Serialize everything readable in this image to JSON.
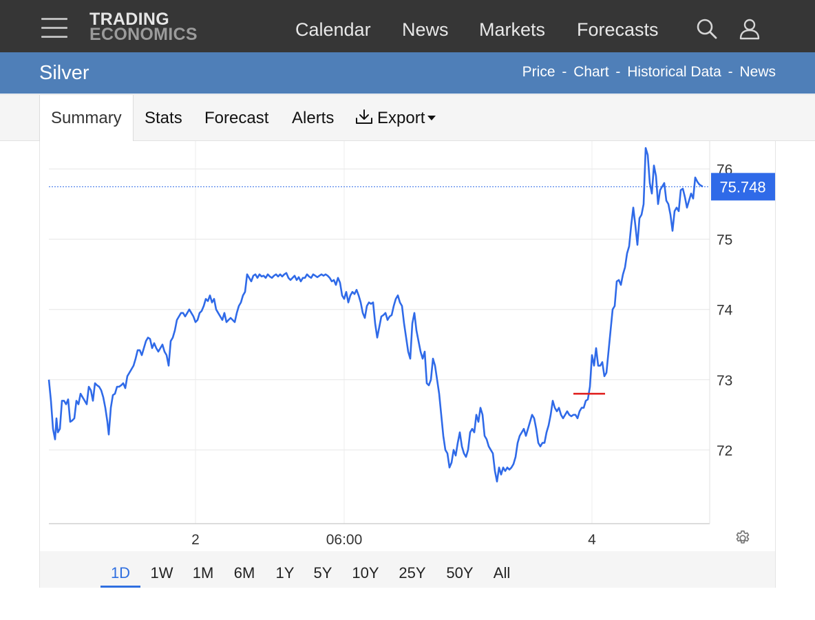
{
  "nav": {
    "logo_line1": "TRADING",
    "logo_line2": "ECONOMICS",
    "links": [
      "Calendar",
      "News",
      "Markets",
      "Forecasts"
    ]
  },
  "titlebar": {
    "title": "Silver",
    "links": [
      "Price",
      "Chart",
      "Historical Data",
      "News"
    ],
    "separator": "-"
  },
  "tabs": {
    "active": "Summary",
    "items": [
      "Summary",
      "Stats",
      "Forecast",
      "Alerts",
      "Export"
    ]
  },
  "chart_data": {
    "type": "line",
    "series_color": "#2f6ae8",
    "current_value": "75.748",
    "current_value_num": 75.748,
    "reference_level": 72.8,
    "reference_color": "#e0201f",
    "ylim": [
      70.95,
      76.3
    ],
    "y_ticks": [
      72,
      73,
      74,
      75,
      76
    ],
    "y_tick_labels": [
      "72",
      "73",
      "74",
      "75",
      "76"
    ],
    "x_ticks": [
      213,
      429,
      789
    ],
    "x_tick_labels": [
      "2",
      "06:00",
      "4"
    ],
    "x_range": [
      0,
      960
    ],
    "grid": true,
    "legend": "none",
    "points": [
      [
        0,
        73.0
      ],
      [
        3,
        72.7
      ],
      [
        6,
        72.3
      ],
      [
        9,
        72.15
      ],
      [
        11,
        72.45
      ],
      [
        13,
        72.25
      ],
      [
        16,
        72.3
      ],
      [
        19,
        72.7
      ],
      [
        22,
        72.7
      ],
      [
        25,
        72.65
      ],
      [
        28,
        72.72
      ],
      [
        31,
        72.4
      ],
      [
        34,
        72.42
      ],
      [
        37,
        72.45
      ],
      [
        40,
        72.7
      ],
      [
        43,
        72.65
      ],
      [
        46,
        72.8
      ],
      [
        49,
        72.75
      ],
      [
        52,
        72.7
      ],
      [
        55,
        72.65
      ],
      [
        58,
        72.9
      ],
      [
        61,
        72.85
      ],
      [
        64,
        72.7
      ],
      [
        67,
        72.95
      ],
      [
        70,
        72.92
      ],
      [
        73,
        72.9
      ],
      [
        76,
        72.85
      ],
      [
        79,
        72.75
      ],
      [
        82,
        72.6
      ],
      [
        85,
        72.4
      ],
      [
        87,
        72.22
      ],
      [
        90,
        72.6
      ],
      [
        93,
        72.78
      ],
      [
        96,
        72.8
      ],
      [
        99,
        72.9
      ],
      [
        102,
        72.9
      ],
      [
        105,
        72.92
      ],
      [
        108,
        72.95
      ],
      [
        111,
        72.88
      ],
      [
        114,
        73.05
      ],
      [
        117,
        73.1
      ],
      [
        120,
        73.15
      ],
      [
        123,
        73.2
      ],
      [
        126,
        73.3
      ],
      [
        129,
        73.42
      ],
      [
        132,
        73.42
      ],
      [
        135,
        73.35
      ],
      [
        138,
        73.45
      ],
      [
        141,
        73.55
      ],
      [
        144,
        73.6
      ],
      [
        147,
        73.58
      ],
      [
        150,
        73.45
      ],
      [
        153,
        73.52
      ],
      [
        156,
        73.45
      ],
      [
        159,
        73.4
      ],
      [
        162,
        73.45
      ],
      [
        165,
        73.5
      ],
      [
        168,
        73.4
      ],
      [
        171,
        73.35
      ],
      [
        174,
        73.2
      ],
      [
        177,
        73.55
      ],
      [
        180,
        73.6
      ],
      [
        183,
        73.7
      ],
      [
        186,
        73.85
      ],
      [
        189,
        73.9
      ],
      [
        192,
        73.95
      ],
      [
        195,
        73.95
      ],
      [
        198,
        73.9
      ],
      [
        201,
        73.95
      ],
      [
        204,
        74.0
      ],
      [
        207,
        73.95
      ],
      [
        210,
        73.9
      ],
      [
        213,
        73.82
      ],
      [
        216,
        73.85
      ],
      [
        219,
        73.95
      ],
      [
        222,
        73.98
      ],
      [
        225,
        74.05
      ],
      [
        228,
        74.15
      ],
      [
        231,
        74.12
      ],
      [
        234,
        74.2
      ],
      [
        237,
        74.1
      ],
      [
        240,
        74.15
      ],
      [
        243,
        74.0
      ],
      [
        246,
        73.95
      ],
      [
        249,
        73.9
      ],
      [
        252,
        73.85
      ],
      [
        255,
        73.95
      ],
      [
        258,
        73.82
      ],
      [
        261,
        73.85
      ],
      [
        264,
        73.88
      ],
      [
        267,
        73.85
      ],
      [
        270,
        73.82
      ],
      [
        273,
        73.95
      ],
      [
        276,
        74.05
      ],
      [
        279,
        74.1
      ],
      [
        282,
        74.2
      ],
      [
        285,
        74.25
      ],
      [
        288,
        74.5
      ],
      [
        291,
        74.45
      ],
      [
        294,
        74.4
      ],
      [
        297,
        74.48
      ],
      [
        300,
        74.5
      ],
      [
        303,
        74.45
      ],
      [
        306,
        74.5
      ],
      [
        309,
        74.47
      ],
      [
        312,
        74.48
      ],
      [
        315,
        74.45
      ],
      [
        318,
        74.5
      ],
      [
        321,
        74.47
      ],
      [
        324,
        74.45
      ],
      [
        327,
        74.48
      ],
      [
        330,
        74.5
      ],
      [
        333,
        74.47
      ],
      [
        336,
        74.5
      ],
      [
        339,
        74.47
      ],
      [
        342,
        74.5
      ],
      [
        345,
        74.52
      ],
      [
        348,
        74.45
      ],
      [
        351,
        74.42
      ],
      [
        354,
        74.45
      ],
      [
        357,
        74.48
      ],
      [
        360,
        74.42
      ],
      [
        363,
        74.46
      ],
      [
        366,
        74.4
      ],
      [
        369,
        74.45
      ],
      [
        372,
        74.45
      ],
      [
        375,
        74.5
      ],
      [
        378,
        74.47
      ],
      [
        381,
        74.45
      ],
      [
        384,
        74.5
      ],
      [
        387,
        74.48
      ],
      [
        390,
        74.46
      ],
      [
        393,
        74.48
      ],
      [
        396,
        74.5
      ],
      [
        399,
        74.48
      ],
      [
        402,
        74.5
      ],
      [
        405,
        74.48
      ],
      [
        408,
        74.45
      ],
      [
        411,
        74.4
      ],
      [
        414,
        74.42
      ],
      [
        417,
        74.35
      ],
      [
        420,
        74.45
      ],
      [
        423,
        74.38
      ],
      [
        426,
        74.2
      ],
      [
        429,
        74.15
      ],
      [
        432,
        74.25
      ],
      [
        435,
        74.1
      ],
      [
        438,
        74.2
      ],
      [
        441,
        74.25
      ],
      [
        444,
        74.22
      ],
      [
        447,
        74.28
      ],
      [
        450,
        74.2
      ],
      [
        453,
        74.1
      ],
      [
        456,
        73.95
      ],
      [
        459,
        73.88
      ],
      [
        462,
        74.05
      ],
      [
        465,
        74.1
      ],
      [
        468,
        74.08
      ],
      [
        471,
        74.1
      ],
      [
        474,
        73.8
      ],
      [
        477,
        73.6
      ],
      [
        480,
        73.75
      ],
      [
        483,
        73.9
      ],
      [
        486,
        73.92
      ],
      [
        489,
        73.95
      ],
      [
        492,
        73.85
      ],
      [
        495,
        73.9
      ],
      [
        498,
        73.92
      ],
      [
        501,
        74.05
      ],
      [
        504,
        74.15
      ],
      [
        507,
        74.2
      ],
      [
        510,
        74.1
      ],
      [
        513,
        74.05
      ],
      [
        516,
        73.8
      ],
      [
        519,
        73.6
      ],
      [
        522,
        73.4
      ],
      [
        525,
        73.3
      ],
      [
        528,
        73.8
      ],
      [
        531,
        73.95
      ],
      [
        534,
        73.7
      ],
      [
        537,
        73.55
      ],
      [
        540,
        73.4
      ],
      [
        543,
        73.3
      ],
      [
        546,
        73.4
      ],
      [
        549,
        72.95
      ],
      [
        552,
        72.92
      ],
      [
        555,
        73.0
      ],
      [
        558,
        73.3
      ],
      [
        561,
        73.2
      ],
      [
        564,
        73.0
      ],
      [
        567,
        72.8
      ],
      [
        570,
        72.5
      ],
      [
        573,
        72.2
      ],
      [
        576,
        72.0
      ],
      [
        579,
        71.95
      ],
      [
        582,
        71.75
      ],
      [
        585,
        71.82
      ],
      [
        588,
        72.0
      ],
      [
        591,
        71.92
      ],
      [
        594,
        72.1
      ],
      [
        597,
        72.25
      ],
      [
        600,
        72.05
      ],
      [
        603,
        71.95
      ],
      [
        606,
        71.9
      ],
      [
        609,
        72.0
      ],
      [
        612,
        72.25
      ],
      [
        615,
        72.3
      ],
      [
        618,
        72.25
      ],
      [
        621,
        72.5
      ],
      [
        624,
        72.4
      ],
      [
        627,
        72.6
      ],
      [
        630,
        72.5
      ],
      [
        633,
        72.2
      ],
      [
        636,
        72.15
      ],
      [
        639,
        72.05
      ],
      [
        642,
        72.0
      ],
      [
        645,
        71.95
      ],
      [
        648,
        71.7
      ],
      [
        651,
        71.55
      ],
      [
        654,
        71.75
      ],
      [
        657,
        71.65
      ],
      [
        660,
        71.75
      ],
      [
        663,
        71.7
      ],
      [
        666,
        71.75
      ],
      [
        669,
        71.72
      ],
      [
        672,
        71.75
      ],
      [
        675,
        71.8
      ],
      [
        678,
        71.9
      ],
      [
        681,
        72.1
      ],
      [
        684,
        72.2
      ],
      [
        687,
        72.25
      ],
      [
        690,
        72.3
      ],
      [
        693,
        72.2
      ],
      [
        696,
        72.3
      ],
      [
        699,
        72.4
      ],
      [
        702,
        72.5
      ],
      [
        705,
        72.45
      ],
      [
        708,
        72.3
      ],
      [
        711,
        72.1
      ],
      [
        714,
        72.05
      ],
      [
        717,
        72.1
      ],
      [
        720,
        72.1
      ],
      [
        723,
        72.25
      ],
      [
        726,
        72.35
      ],
      [
        729,
        72.5
      ],
      [
        732,
        72.7
      ],
      [
        735,
        72.6
      ],
      [
        738,
        72.55
      ],
      [
        741,
        72.6
      ],
      [
        744,
        72.5
      ],
      [
        747,
        72.45
      ],
      [
        750,
        72.5
      ],
      [
        753,
        72.55
      ],
      [
        756,
        72.5
      ],
      [
        759,
        72.48
      ],
      [
        762,
        72.5
      ],
      [
        765,
        72.5
      ],
      [
        768,
        72.45
      ],
      [
        771,
        72.55
      ],
      [
        774,
        72.6
      ],
      [
        777,
        72.6
      ],
      [
        780,
        72.7
      ],
      [
        783,
        72.72
      ],
      [
        786,
        72.9
      ],
      [
        789,
        73.35
      ],
      [
        792,
        73.2
      ],
      [
        795,
        73.45
      ],
      [
        798,
        73.2
      ],
      [
        801,
        73.2
      ],
      [
        804,
        73.25
      ],
      [
        807,
        73.05
      ],
      [
        810,
        73.1
      ],
      [
        813,
        73.4
      ],
      [
        816,
        73.7
      ],
      [
        819,
        74.0
      ],
      [
        822,
        74.05
      ],
      [
        825,
        74.4
      ],
      [
        828,
        74.42
      ],
      [
        831,
        74.35
      ],
      [
        834,
        74.5
      ],
      [
        837,
        74.6
      ],
      [
        840,
        74.8
      ],
      [
        843,
        74.9
      ],
      [
        846,
        75.2
      ],
      [
        849,
        75.45
      ],
      [
        852,
        75.2
      ],
      [
        855,
        74.92
      ],
      [
        858,
        75.3
      ],
      [
        861,
        75.35
      ],
      [
        864,
        75.5
      ],
      [
        867,
        76.3
      ],
      [
        870,
        76.2
      ],
      [
        873,
        75.8
      ],
      [
        876,
        75.65
      ],
      [
        879,
        76.05
      ],
      [
        882,
        75.9
      ],
      [
        885,
        75.5
      ],
      [
        888,
        75.7
      ],
      [
        891,
        75.75
      ],
      [
        894,
        75.8
      ],
      [
        897,
        75.55
      ],
      [
        900,
        75.5
      ],
      [
        903,
        75.35
      ],
      [
        906,
        75.12
      ],
      [
        909,
        75.4
      ],
      [
        912,
        75.45
      ],
      [
        915,
        75.4
      ],
      [
        918,
        75.7
      ],
      [
        921,
        75.72
      ],
      [
        924,
        75.6
      ],
      [
        927,
        75.45
      ],
      [
        930,
        75.55
      ],
      [
        933,
        75.65
      ],
      [
        936,
        75.58
      ],
      [
        939,
        75.88
      ],
      [
        942,
        75.82
      ],
      [
        945,
        75.78
      ],
      [
        948,
        75.76
      ],
      [
        950,
        75.748
      ]
    ]
  },
  "ranges": {
    "active": "1D",
    "items": [
      "1D",
      "1W",
      "1M",
      "6M",
      "1Y",
      "5Y",
      "10Y",
      "25Y",
      "50Y",
      "All"
    ]
  }
}
